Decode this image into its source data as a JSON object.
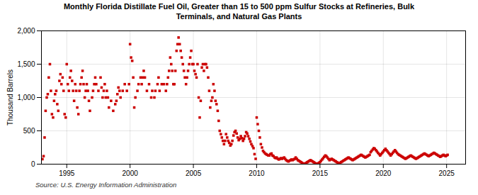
{
  "chart_data": {
    "type": "scatter",
    "title": "Monthly Florida Distillate Fuel Oil, Greater than 15 to 500 ppm Sulfur Stocks at Refineries, Bulk\nTerminals, and Natural Gas Plants",
    "ylabel": "Thousand Barrels",
    "annotations": [
      "Source: U.S. Energy Information Administration"
    ],
    "color": "#cc0000",
    "marker": "square",
    "grid": true,
    "xlim": [
      1993.0,
      2026.5
    ],
    "xticks": [
      1995,
      2000,
      2005,
      2010,
      2015,
      2020,
      2025
    ],
    "ylim": [
      0,
      2000
    ],
    "yticks": [
      0,
      500,
      {
        "value": 1000,
        "label": "1,000"
      },
      {
        "value": 1500,
        "label": "1,500"
      },
      {
        "value": 2000,
        "label": "2,000"
      }
    ],
    "x": [
      1993.08,
      1993.17,
      1993.25,
      1993.33,
      1993.42,
      1993.5,
      1993.58,
      1993.67,
      1993.75,
      1993.83,
      1993.92,
      1994.0,
      1994.08,
      1994.17,
      1994.25,
      1994.33,
      1994.42,
      1994.5,
      1994.58,
      1994.67,
      1994.75,
      1994.83,
      1994.92,
      1995.0,
      1995.08,
      1995.17,
      1995.25,
      1995.33,
      1995.42,
      1995.5,
      1995.58,
      1995.67,
      1995.75,
      1995.83,
      1995.92,
      1996.0,
      1996.08,
      1996.17,
      1996.25,
      1996.33,
      1996.42,
      1996.5,
      1996.58,
      1996.67,
      1996.75,
      1996.83,
      1997.0,
      1997.08,
      1997.17,
      1997.25,
      1997.33,
      1997.5,
      1997.67,
      1997.75,
      1997.83,
      1997.92,
      1998.0,
      1998.08,
      1998.17,
      1998.25,
      1998.33,
      1998.5,
      1998.67,
      1998.83,
      1998.92,
      1999.0,
      1999.08,
      1999.17,
      1999.25,
      1999.42,
      1999.58,
      1999.75,
      1999.92,
      2000.0,
      2000.08,
      2000.17,
      2000.25,
      2000.33,
      2000.42,
      2000.58,
      2000.67,
      2000.83,
      2000.92,
      2001.0,
      2001.08,
      2001.17,
      2001.33,
      2001.5,
      2001.67,
      2001.75,
      2001.92,
      2002.0,
      2002.17,
      2002.25,
      2002.33,
      2002.5,
      2002.67,
      2002.83,
      2002.92,
      2003.0,
      2003.08,
      2003.17,
      2003.25,
      2003.33,
      2003.42,
      2003.5,
      2003.58,
      2003.67,
      2003.75,
      2003.83,
      2003.92,
      2004.0,
      2004.08,
      2004.17,
      2004.25,
      2004.33,
      2004.42,
      2004.5,
      2004.58,
      2004.67,
      2004.75,
      2004.83,
      2004.92,
      2005.0,
      2005.08,
      2005.17,
      2005.25,
      2005.33,
      2005.42,
      2005.5,
      2005.58,
      2005.67,
      2005.75,
      2005.83,
      2005.92,
      2006.0,
      2006.08,
      2006.17,
      2006.25,
      2006.33,
      2006.42,
      2006.5,
      2006.58,
      2006.67,
      2006.75,
      2006.83,
      2006.92,
      2007.0,
      2007.08,
      2007.17,
      2007.25,
      2007.33,
      2007.42,
      2007.5,
      2007.58,
      2007.67,
      2007.75,
      2007.83,
      2007.92,
      2008.0,
      2008.08,
      2008.17,
      2008.25,
      2008.33,
      2008.42,
      2008.5,
      2008.58,
      2008.67,
      2008.75,
      2008.83,
      2008.92,
      2009.0,
      2009.08,
      2009.17,
      2009.25,
      2009.33,
      2009.42,
      2009.5,
      2009.58,
      2009.67,
      2009.75,
      2009.83,
      2009.92,
      2010.0,
      2010.08,
      2010.17,
      2010.25,
      2010.33,
      2010.42,
      2010.5,
      2010.58,
      2010.67,
      2010.75,
      2010.83,
      2010.92,
      2011.0,
      2011.08,
      2011.17,
      2011.25,
      2011.33,
      2011.42,
      2011.5,
      2011.58,
      2011.67,
      2011.75,
      2011.83,
      2011.92,
      2012.0,
      2012.08,
      2012.17,
      2012.25,
      2012.33,
      2012.42,
      2012.5,
      2012.58,
      2012.67,
      2012.75,
      2012.83,
      2012.92,
      2013.0,
      2013.08,
      2013.17,
      2013.25,
      2013.33,
      2013.42,
      2013.5,
      2013.58,
      2013.67,
      2013.75,
      2013.83,
      2013.92,
      2014.0,
      2014.08,
      2014.17,
      2014.25,
      2014.33,
      2014.42,
      2014.5,
      2014.58,
      2014.67,
      2014.75,
      2014.83,
      2014.92,
      2015.0,
      2015.08,
      2015.17,
      2015.25,
      2015.33,
      2015.42,
      2015.5,
      2015.58,
      2015.67,
      2015.75,
      2015.83,
      2015.92,
      2016.0,
      2016.08,
      2016.17,
      2016.25,
      2016.33,
      2016.42,
      2016.5,
      2016.58,
      2016.67,
      2016.75,
      2016.83,
      2016.92,
      2017.0,
      2017.08,
      2017.17,
      2017.25,
      2017.33,
      2017.42,
      2017.5,
      2017.58,
      2017.67,
      2017.75,
      2017.83,
      2017.92,
      2018.0,
      2018.08,
      2018.17,
      2018.25,
      2018.33,
      2018.42,
      2018.5,
      2018.58,
      2018.67,
      2018.75,
      2018.83,
      2018.92,
      2019.0,
      2019.08,
      2019.17,
      2019.25,
      2019.33,
      2019.42,
      2019.5,
      2019.58,
      2019.67,
      2019.75,
      2019.83,
      2019.92,
      2020.0,
      2020.08,
      2020.17,
      2020.25,
      2020.33,
      2020.42,
      2020.5,
      2020.58,
      2020.67,
      2020.75,
      2020.83,
      2020.92,
      2021.0,
      2021.08,
      2021.17,
      2021.25,
      2021.33,
      2021.42,
      2021.5,
      2021.58,
      2021.67,
      2021.75,
      2021.83,
      2021.92,
      2022.0,
      2022.08,
      2022.17,
      2022.25,
      2022.33,
      2022.42,
      2022.5,
      2022.58,
      2022.67,
      2022.75,
      2022.83,
      2022.92,
      2023.0,
      2023.08,
      2023.17,
      2023.25,
      2023.33,
      2023.42,
      2023.5,
      2023.58,
      2023.67,
      2023.75,
      2023.83,
      2023.92,
      2024.0,
      2024.08,
      2024.17,
      2024.25,
      2024.33,
      2024.42,
      2024.5,
      2024.58,
      2024.67,
      2024.75,
      2024.83,
      2024.92,
      2025.0,
      2025.08
    ],
    "values": [
      75,
      120,
      400,
      800,
      1000,
      1050,
      1300,
      1500,
      1100,
      750,
      700,
      950,
      1050,
      1100,
      900,
      800,
      1250,
      1350,
      1200,
      1300,
      1100,
      750,
      700,
      1500,
      1200,
      1100,
      1300,
      1400,
      1250,
      1100,
      950,
      1200,
      1100,
      850,
      750,
      1100,
      1200,
      1300,
      1400,
      1200,
      1000,
      1100,
      1200,
      1100,
      950,
      800,
      1000,
      1100,
      1200,
      1300,
      1200,
      1100,
      1300,
      1150,
      1000,
      1100,
      1200,
      1000,
      1100,
      1000,
      850,
      950,
      800,
      900,
      950,
      1050,
      1150,
      1100,
      1000,
      1100,
      1200,
      1100,
      1200,
      1800,
      1600,
      1550,
      1300,
      850,
      1000,
      1100,
      1200,
      1300,
      1200,
      1300,
      1400,
      1300,
      1100,
      1200,
      1000,
      1100,
      1000,
      1100,
      1200,
      1300,
      1100,
      1200,
      1200,
      1100,
      1200,
      1300,
      1400,
      1600,
      1500,
      1400,
      1200,
      1200,
      1400,
      1700,
      1800,
      1900,
      1800,
      1700,
      1600,
      1500,
      1400,
      1300,
      1200,
      1300,
      1400,
      1500,
      1600,
      1700,
      1500,
      1500,
      1400,
      1350,
      1300,
      1500,
      1000,
      700,
      950,
      1450,
      1500,
      1400,
      1500,
      1500,
      1450,
      1300,
      1100,
      850,
      950,
      1000,
      1200,
      1100,
      950,
      900,
      800,
      650,
      500,
      450,
      400,
      350,
      300,
      350,
      450,
      400,
      350,
      320,
      280,
      300,
      350,
      430,
      480,
      500,
      460,
      400,
      360,
      380,
      420,
      390,
      350,
      380,
      420,
      480,
      460,
      420,
      380,
      340,
      300,
      270,
      240,
      150,
      80,
      700,
      600,
      500,
      400,
      300,
      250,
      200,
      180,
      160,
      150,
      140,
      130,
      130,
      150,
      160,
      130,
      120,
      100,
      90,
      100,
      80,
      70,
      80,
      90,
      80,
      90,
      100,
      80,
      60,
      50,
      40,
      50,
      60,
      70,
      60,
      70,
      80,
      100,
      80,
      60,
      50,
      40,
      30,
      20,
      10,
      5,
      10,
      20,
      30,
      40,
      50,
      60,
      50,
      40,
      30,
      20,
      10,
      5,
      10,
      20,
      30,
      50,
      70,
      90,
      110,
      130,
      120,
      100,
      80,
      60,
      70,
      80,
      70,
      60,
      50,
      40,
      30,
      20,
      10,
      20,
      30,
      40,
      50,
      60,
      70,
      80,
      90,
      100,
      90,
      80,
      70,
      60,
      70,
      80,
      90,
      100,
      110,
      120,
      130,
      140,
      130,
      120,
      110,
      100,
      110,
      120,
      130,
      140,
      180,
      200,
      220,
      240,
      230,
      210,
      190,
      170,
      150,
      130,
      150,
      170,
      190,
      210,
      230,
      210,
      190,
      170,
      150,
      130,
      150,
      170,
      190,
      210,
      190,
      170,
      150,
      140,
      130,
      120,
      110,
      100,
      90,
      80,
      90,
      100,
      110,
      120,
      130,
      120,
      110,
      100,
      90,
      80,
      90,
      100,
      110,
      120,
      130,
      140,
      150,
      160,
      150,
      140,
      130,
      120,
      130,
      140,
      150,
      160,
      170,
      160,
      150,
      140,
      130,
      120,
      110,
      120,
      130,
      140,
      130,
      120,
      130,
      140
    ]
  }
}
